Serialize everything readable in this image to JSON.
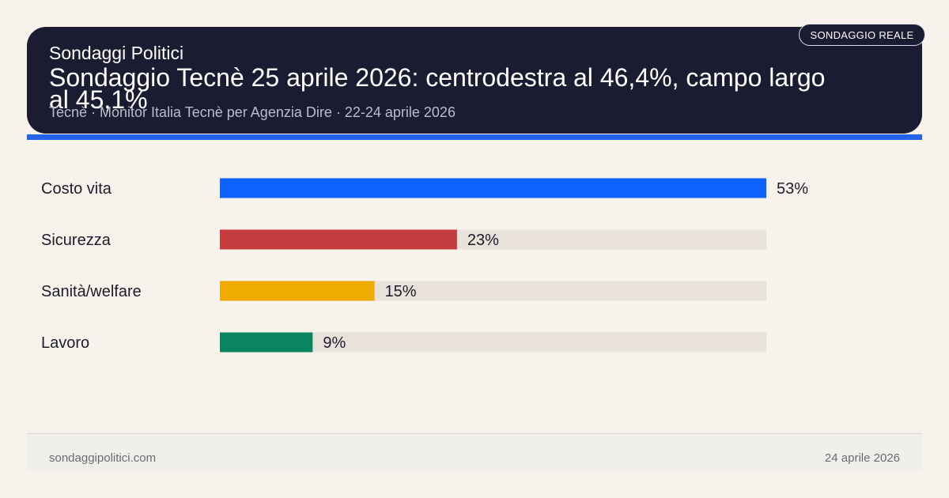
{
  "header": {
    "site_name": "Sondaggi Politici",
    "headline": "Sondaggio Tecnè 25 aprile 2026: centrodestra al 46,4%, campo largo al 45,1%",
    "sub_info": "Tecnè · Monitor Italia Tecnè per Agenzia Dire · 22-24 aprile 2026",
    "badge": "SONDAGGIO REALE"
  },
  "chart_data": {
    "type": "bar",
    "orientation": "horizontal",
    "categories": [
      "Costo vita",
      "Sicurezza",
      "Sanità/welfare",
      "Lavoro"
    ],
    "values": [
      53,
      23,
      15,
      9
    ],
    "value_labels": [
      "53%",
      "23%",
      "15%",
      "9%"
    ],
    "colors": [
      "#0f62fe",
      "#c53b3e",
      "#f0ab00",
      "#0b8560"
    ],
    "track_color": "#e9e2db",
    "xlim": [
      0,
      53
    ],
    "title": "",
    "xlabel": "",
    "ylabel": ""
  },
  "footer": {
    "site": "sondaggipolitici.com",
    "date": "24 aprile 2026"
  }
}
